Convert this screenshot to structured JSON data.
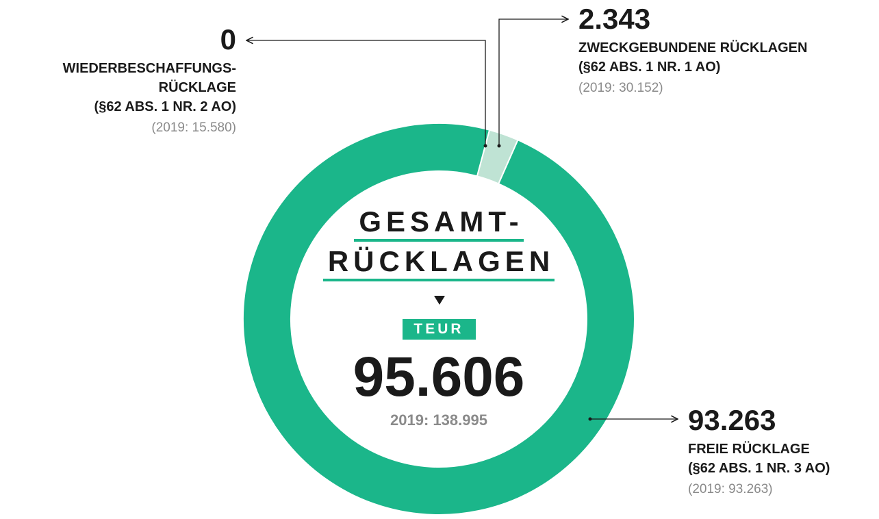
{
  "chart_data": {
    "type": "donut",
    "title": [
      "GESAMT-",
      "RÜCKLAGEN"
    ],
    "unit": "TEUR",
    "total": 95606,
    "total_label": "95.606",
    "total_previous": "2019: 138.995",
    "categories": [
      "WIEDERBESCHAFFUNGS-\nRÜCKLAGE",
      "ZWECKGEBUNDENE RÜCKLAGEN",
      "FREIE RÜCKLAGE"
    ],
    "notes": [
      "(§62 ABS. 1 NR. 2 AO)",
      "(§62 ABS. 1 NR. 1 AO)",
      "(§62 ABS. 1 NR. 3 AO)"
    ],
    "values": [
      0,
      2343,
      93263
    ],
    "value_labels": [
      "0",
      "2.343",
      "93.263"
    ],
    "previous_labels": [
      "(2019: 15.580)",
      "(2019: 30.152)",
      "(2019: 93.263)"
    ],
    "colors": [
      "#1bb68a",
      "#bfe3d4",
      "#1bb68a"
    ]
  }
}
